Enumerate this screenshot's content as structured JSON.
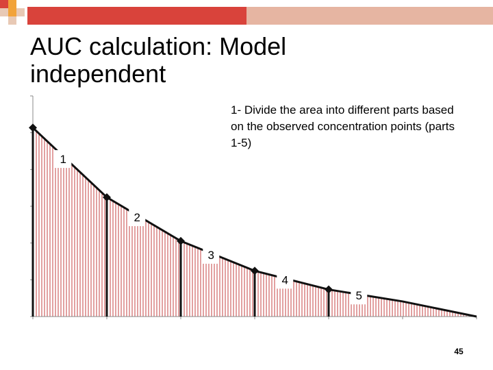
{
  "slide": {
    "title": "AUC calculation: Model independent",
    "note": "1- Divide the area into different parts based on the observed concentration points (parts 1-5)",
    "page_number": "45"
  },
  "colors": {
    "decoration_red": "#d9433b",
    "decoration_orange": "#f2a33a",
    "decoration_tan": "#e8c9b5",
    "hatch_red": "#c44040",
    "curve": "#111111"
  },
  "chart_data": {
    "type": "area",
    "title": "",
    "xlabel": "",
    "ylabel": "",
    "xlim": [
      0,
      6
    ],
    "ylim": [
      0,
      5.55
    ],
    "x": [
      0,
      1,
      2,
      3,
      4,
      5,
      6
    ],
    "y": [
      4.75,
      3.0,
      1.9,
      1.15,
      0.68,
      0.38,
      0.0
    ],
    "observed_points": [
      0,
      1,
      2,
      3,
      4
    ],
    "partitions": [
      "1",
      "2",
      "3",
      "4",
      "5"
    ],
    "grid": false,
    "legend": "none"
  }
}
